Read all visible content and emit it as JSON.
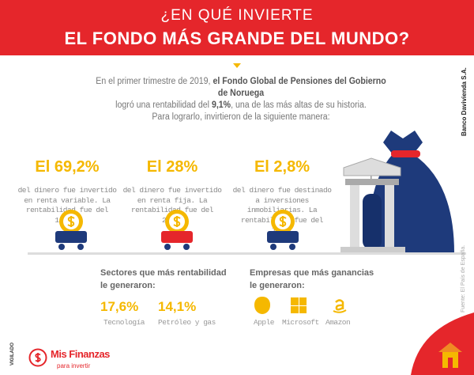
{
  "header": {
    "line1": "¿EN QUÉ INVIERTE",
    "line2": "EL FONDO MÁS GRANDE DEL MUNDO?"
  },
  "intro": {
    "p1a": "En el primer trimestre de 2019, ",
    "p1b": "el Fondo Global de Pensiones del Gobierno de Noruega",
    "p2a": "logró una rentabilidad del ",
    "p2b": "9,1%",
    "p2c": ", una de las más altas de su historia.",
    "p3": "Para lograrlo, invirtieron de la siguiente manera:"
  },
  "investments": [
    {
      "pct": "El 69,2%",
      "desc": "del dinero fue invertido en renta variable. La rentabilidad fue del 12,2%.",
      "cart_color": "#1e3a7b"
    },
    {
      "pct": "El 28%",
      "desc": "del dinero fue invertido en renta fija. La rentabilidad fue del 2,9%.",
      "cart_color": "#e5262b"
    },
    {
      "pct": "El 2,8%",
      "desc": "del dinero fue destinado a inversiones inmobiliarias. La rentabilidad fue del 1,7%.",
      "cart_color": "#1e3a7b"
    }
  ],
  "sectors": {
    "title1": "Sectores que más rentabilidad",
    "title2": "le generaron:",
    "items": [
      {
        "value": "17,6%",
        "label": "Tecnología"
      },
      {
        "value": "14,1%",
        "label": "Petróleo y gas"
      }
    ]
  },
  "companies": {
    "title1": "Empresas que más ganancias",
    "title2": "le generaron:",
    "items": [
      {
        "icon": "apple-icon",
        "label": "Apple"
      },
      {
        "icon": "microsoft-icon",
        "label": "Microsoft"
      },
      {
        "icon": "amazon-icon",
        "label": "Amazon"
      }
    ]
  },
  "credit": "Banco Davivienda S.A.",
  "source": "Fuente: El País de España.",
  "vigilado": "VIGILADO",
  "logo": {
    "name": "Mis Finanzas",
    "tagline": "para invertir"
  },
  "colors": {
    "red": "#e5262b",
    "yellow": "#f5b800",
    "navy": "#1e3a7b"
  }
}
